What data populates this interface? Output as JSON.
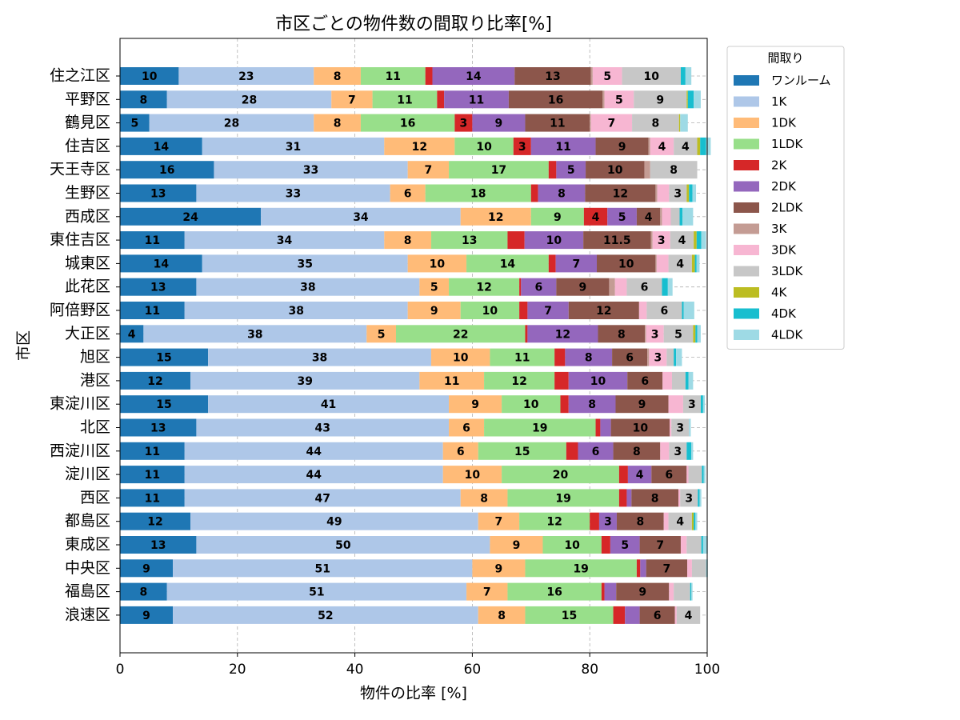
{
  "chart_data": {
    "type": "stacked-barh",
    "title": "市区ごとの物件数の間取り比率[%]",
    "xlabel": "物件の比率 [%]",
    "ylabel": "市区",
    "legend_title": "間取り",
    "legend": "outside-right",
    "xlim": [
      0,
      100
    ],
    "xticks": [
      0,
      20,
      40,
      60,
      80,
      100
    ],
    "grid": true,
    "categories": [
      "住之江区",
      "平野区",
      "鶴見区",
      "住吉区",
      "天王寺区",
      "生野区",
      "西成区",
      "東住吉区",
      "城東区",
      "此花区",
      "阿倍野区",
      "大正区",
      "旭区",
      "港区",
      "東淀川区",
      "北区",
      "西淀川区",
      "淀川区",
      "西区",
      "都島区",
      "東成区",
      "中央区",
      "福島区",
      "浪速区"
    ],
    "series": [
      {
        "name": "ワンルーム",
        "color": "#1f77b4",
        "values": [
          10,
          8,
          5,
          14,
          16,
          13,
          24,
          11,
          14,
          13,
          11,
          4,
          15,
          12,
          15,
          13,
          11,
          11,
          11,
          12,
          13,
          9,
          8,
          9
        ]
      },
      {
        "name": "1K",
        "color": "#aec7e8",
        "values": [
          23,
          28,
          28,
          31,
          33,
          33,
          34,
          34,
          35,
          38,
          38,
          38,
          38,
          39,
          41,
          43,
          44,
          44,
          47,
          49,
          50,
          51,
          51,
          52
        ]
      },
      {
        "name": "1DK",
        "color": "#ffbb78",
        "values": [
          8,
          7,
          8,
          12,
          7,
          6,
          12,
          8,
          10,
          5,
          9,
          5,
          10,
          11,
          9,
          6,
          6,
          10,
          8,
          7,
          9,
          9,
          7,
          8
        ]
      },
      {
        "name": "1LDK",
        "color": "#98df8a",
        "values": [
          11,
          11,
          16,
          10,
          17,
          18,
          9,
          13,
          14,
          12,
          10,
          22,
          11,
          12,
          10,
          19,
          15,
          20,
          19,
          12,
          10,
          19,
          16,
          15
        ]
      },
      {
        "name": "2K",
        "color": "#d62728",
        "values": [
          1.2,
          1.2,
          3,
          3,
          1.3,
          1.2,
          4,
          2.9,
          1.2,
          0.3,
          1.4,
          0.4,
          1.8,
          2.4,
          1.4,
          0.8,
          2,
          1.5,
          1.3,
          1.6,
          1.5,
          0.6,
          0.5,
          2
        ]
      },
      {
        "name": "2DK",
        "color": "#9467bd",
        "values": [
          14,
          11,
          9,
          11,
          5,
          8,
          5,
          10,
          7,
          6,
          7,
          12,
          8,
          10,
          8,
          1.8,
          6,
          4,
          0.8,
          3,
          5,
          1,
          2,
          2.5
        ]
      },
      {
        "name": "2LDK",
        "color": "#8c564b",
        "values": [
          13,
          16,
          11,
          9,
          10,
          12,
          4,
          11.5,
          10,
          9,
          12,
          8,
          6,
          6,
          9,
          10,
          8,
          6,
          8,
          8,
          7,
          7,
          9,
          6
        ]
      },
      {
        "name": "3K",
        "color": "#c49c94",
        "values": [
          0.3,
          0.3,
          0.2,
          0.3,
          1,
          0.3,
          0.3,
          0.3,
          0.2,
          1,
          0,
          0.2,
          0.3,
          0,
          0,
          0,
          0,
          0,
          0,
          0,
          0,
          0,
          0,
          0
        ]
      },
      {
        "name": "3DK",
        "color": "#f7b6d2",
        "values": [
          5,
          5,
          7,
          4,
          0,
          2,
          1.5,
          3,
          2,
          2,
          1.3,
          3,
          3,
          1.6,
          2.5,
          0.3,
          1.5,
          0.3,
          0.3,
          0.8,
          1,
          0.8,
          0.8,
          0.3
        ]
      },
      {
        "name": "3LDK",
        "color": "#c7c7c7",
        "values": [
          10,
          9,
          8,
          4,
          8,
          3,
          1.5,
          4,
          4,
          6,
          6,
          5,
          1.2,
          2.3,
          3,
          3,
          3,
          2.3,
          3,
          4,
          2.5,
          2.4,
          2.8,
          4
        ]
      },
      {
        "name": "4K",
        "color": "#bcbd22",
        "values": [
          0,
          0.2,
          0.2,
          0.5,
          0,
          0.4,
          0,
          0.5,
          0.5,
          0,
          0,
          0.4,
          0,
          0,
          0,
          0,
          0,
          0,
          0,
          0.3,
          0,
          0,
          0,
          0
        ]
      },
      {
        "name": "4DK",
        "color": "#17becf",
        "values": [
          0.8,
          1,
          0,
          1,
          0,
          0.6,
          0.5,
          0.8,
          0.3,
          1,
          0.3,
          0.3,
          0.4,
          0.5,
          0.4,
          0,
          0.8,
          0.3,
          0.3,
          0.3,
          0.3,
          0,
          0.2,
          0
        ]
      },
      {
        "name": "4LDK",
        "color": "#9edae5",
        "values": [
          1,
          1.2,
          1.3,
          0.8,
          0,
          0.6,
          1.8,
          0.8,
          0.5,
          0.8,
          1.8,
          0.6,
          1,
          0.8,
          0.3,
          0.3,
          0.3,
          0.3,
          0.3,
          0.3,
          0.8,
          0.3,
          0.2,
          0
        ]
      }
    ]
  }
}
